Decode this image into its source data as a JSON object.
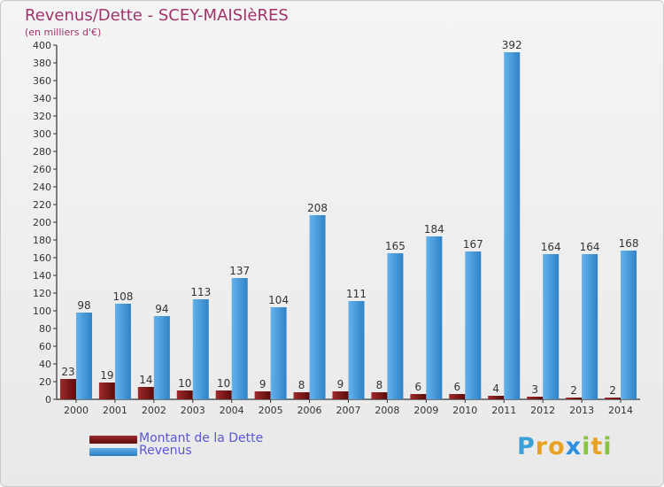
{
  "header": {
    "title": "Revenus/Dette - SCEY-MAISIèRES",
    "subtitle": "(en milliers d'€)"
  },
  "legend": {
    "items": [
      {
        "label": "Montant de la Dette",
        "color": "#7b1414"
      },
      {
        "label": "Revenus",
        "color": "#3a93d6"
      }
    ]
  },
  "logo": {
    "text": "Proxiti"
  },
  "chart_data": {
    "type": "bar",
    "title": "Revenus/Dette - SCEY-MAISIèRES",
    "subtitle": "(en milliers d'€)",
    "categories": [
      "2000",
      "2001",
      "2002",
      "2003",
      "2004",
      "2005",
      "2006",
      "2007",
      "2008",
      "2009",
      "2010",
      "2011",
      "2012",
      "2013",
      "2014"
    ],
    "series": [
      {
        "name": "Montant de la Dette",
        "color": "#7b1414",
        "values": [
          23,
          19,
          14,
          10,
          10,
          9,
          8,
          9,
          8,
          6,
          6,
          4,
          3,
          2,
          2
        ]
      },
      {
        "name": "Revenus",
        "color": "#3a93d6",
        "values": [
          98,
          108,
          94,
          113,
          137,
          104,
          208,
          111,
          165,
          184,
          167,
          392,
          164,
          164,
          168
        ]
      }
    ],
    "ylim": [
      0,
      400
    ],
    "yticks": [
      0,
      20,
      40,
      60,
      80,
      100,
      120,
      140,
      160,
      180,
      200,
      220,
      240,
      260,
      280,
      300,
      320,
      340,
      360,
      380,
      400
    ],
    "grid": false,
    "legend_position": "bottom-left"
  }
}
